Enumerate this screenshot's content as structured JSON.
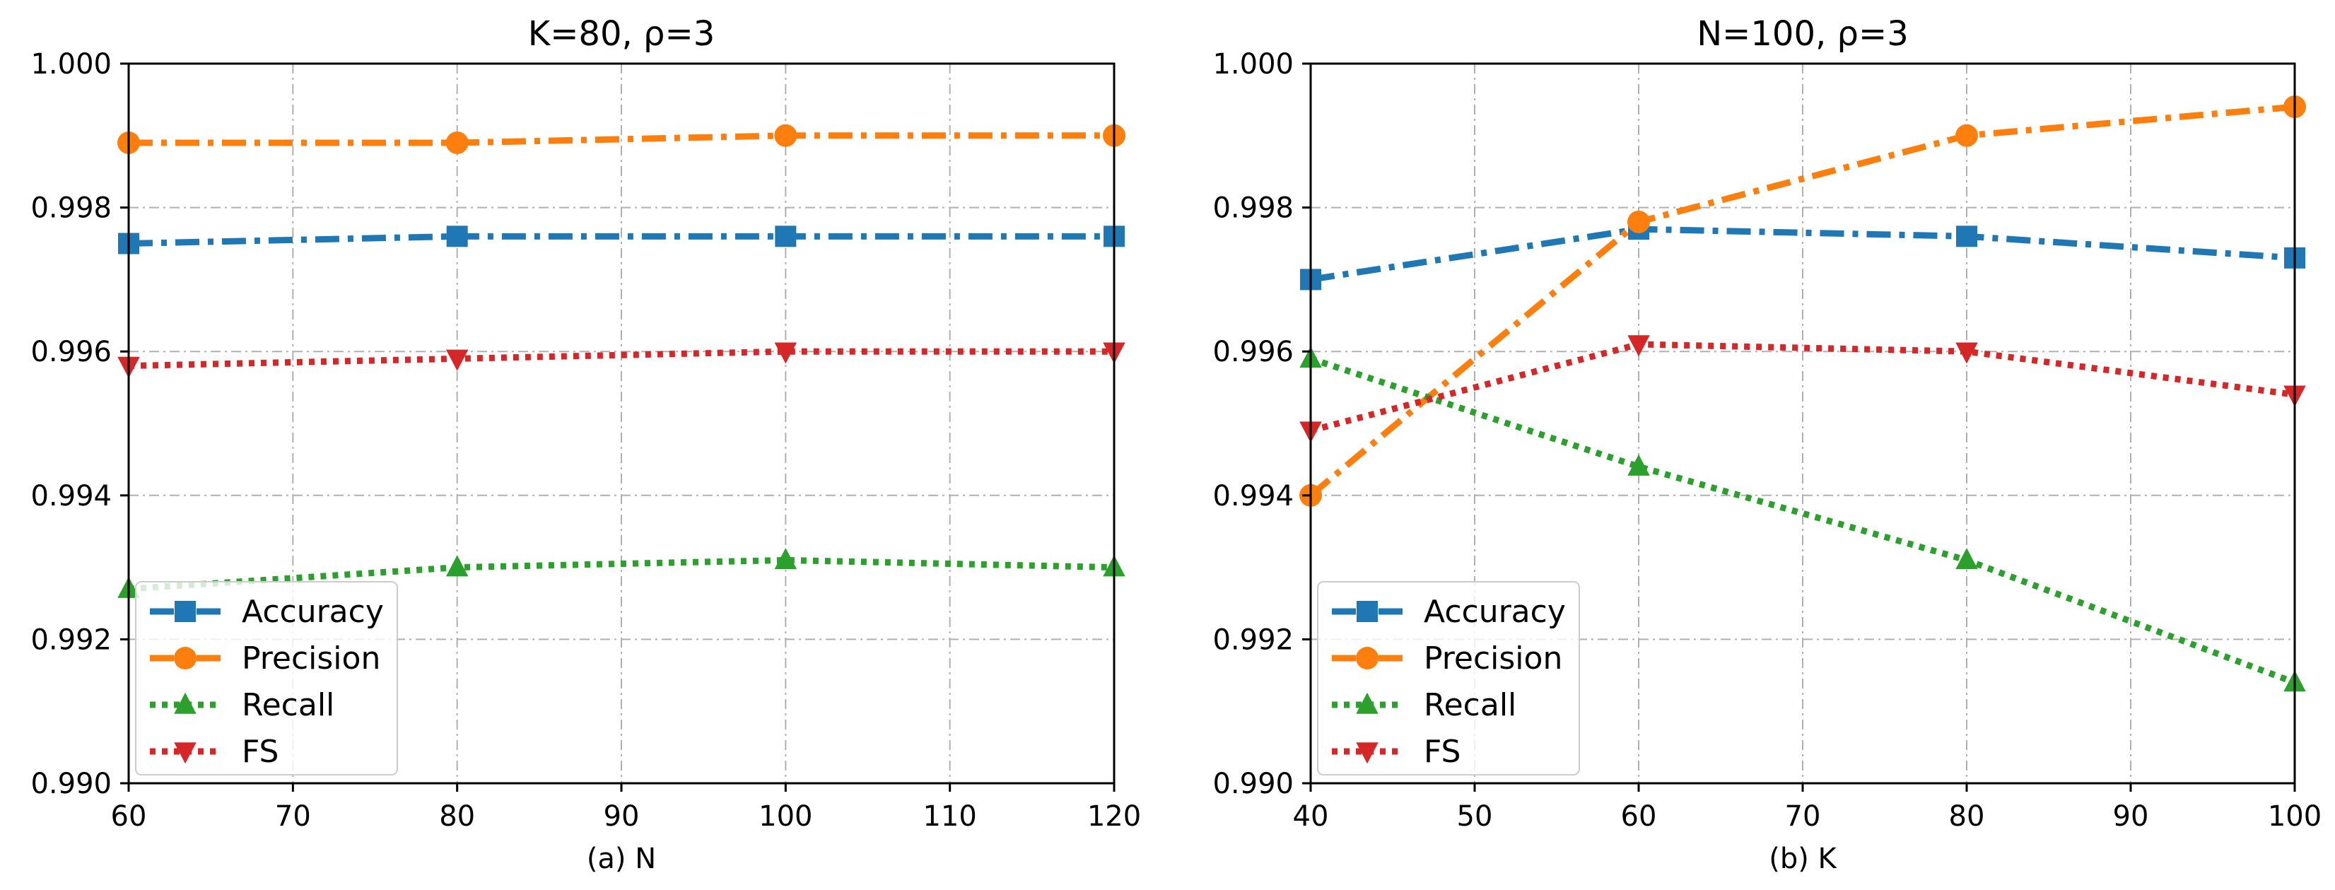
{
  "chart_data": [
    {
      "type": "line",
      "title": "K=80, ρ=3",
      "xlabel": "(a) N",
      "ylabel": "",
      "xlim": [
        60,
        120
      ],
      "ylim": [
        0.99,
        1.0
      ],
      "xticks": [
        60,
        70,
        80,
        90,
        100,
        110,
        120
      ],
      "yticks": [
        0.99,
        0.992,
        0.994,
        0.996,
        0.998,
        1.0
      ],
      "grid": true,
      "legend_position": "lower-left",
      "x": [
        60,
        80,
        100,
        120
      ],
      "series": [
        {
          "name": "Accuracy",
          "values": [
            0.9975,
            0.9976,
            0.9976,
            0.9976
          ]
        },
        {
          "name": "Precision",
          "values": [
            0.9989,
            0.9989,
            0.999,
            0.999
          ]
        },
        {
          "name": "Recall",
          "values": [
            0.9927,
            0.993,
            0.9931,
            0.993
          ]
        },
        {
          "name": "FS",
          "values": [
            0.9958,
            0.9959,
            0.996,
            0.996
          ]
        }
      ]
    },
    {
      "type": "line",
      "title": "N=100, ρ=3",
      "xlabel": "(b) K",
      "ylabel": "",
      "xlim": [
        40,
        100
      ],
      "ylim": [
        0.99,
        1.0
      ],
      "xticks": [
        40,
        50,
        60,
        70,
        80,
        90,
        100
      ],
      "yticks": [
        0.99,
        0.992,
        0.994,
        0.996,
        0.998,
        1.0
      ],
      "grid": true,
      "legend_position": "lower-left",
      "x": [
        40,
        60,
        80,
        100
      ],
      "series": [
        {
          "name": "Accuracy",
          "values": [
            0.997,
            0.9977,
            0.9976,
            0.9973
          ]
        },
        {
          "name": "Precision",
          "values": [
            0.994,
            0.9978,
            0.999,
            0.9994
          ]
        },
        {
          "name": "Recall",
          "values": [
            0.9959,
            0.9944,
            0.9931,
            0.9914
          ]
        },
        {
          "name": "FS",
          "values": [
            0.9949,
            0.9961,
            0.996,
            0.9954
          ]
        }
      ]
    }
  ],
  "style": {
    "colors": {
      "Accuracy": "#1f77b4",
      "Precision": "#ff7f0e",
      "Recall": "#2ca02c",
      "FS": "#d62728"
    },
    "markers": {
      "Accuracy": "square",
      "Precision": "circle",
      "Recall": "triangle-up",
      "FS": "triangle-down"
    },
    "linestyles": {
      "Accuracy": "dash-dot",
      "Precision": "dash-dot",
      "Recall": "dotted",
      "FS": "dotted"
    }
  }
}
